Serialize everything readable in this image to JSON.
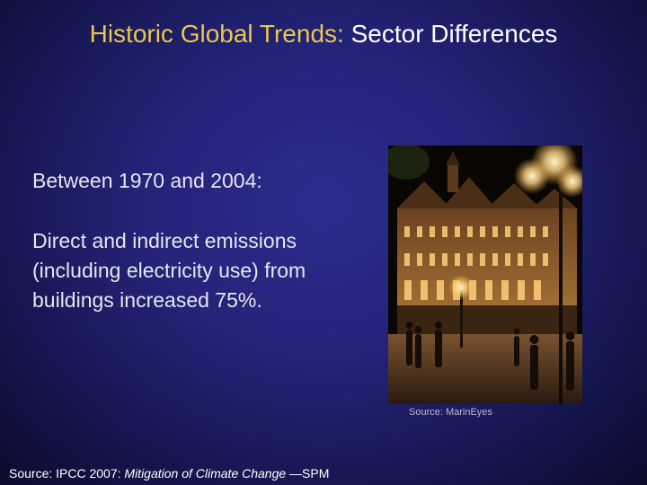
{
  "slide": {
    "title_part1": "Historic Global Trends:",
    "title_part2": "Sector Differences",
    "intro": "Between 1970 and 2004:",
    "main_text": "Direct and indirect emissions (including electricity use) from buildings increased 75%.",
    "photo_credit": "Source: MarinEyes",
    "source": {
      "prefix": "Source: IPCC 2007: ",
      "work_title": "Mitigation of Climate Change",
      "suffix": " —SPM"
    }
  },
  "photo": {
    "subject": "night-building-photo",
    "colors": {
      "sky": "#0a0604",
      "facade": "#8a5a28",
      "glow": "#ffd98a",
      "plaza": "#5a3a22"
    }
  }
}
